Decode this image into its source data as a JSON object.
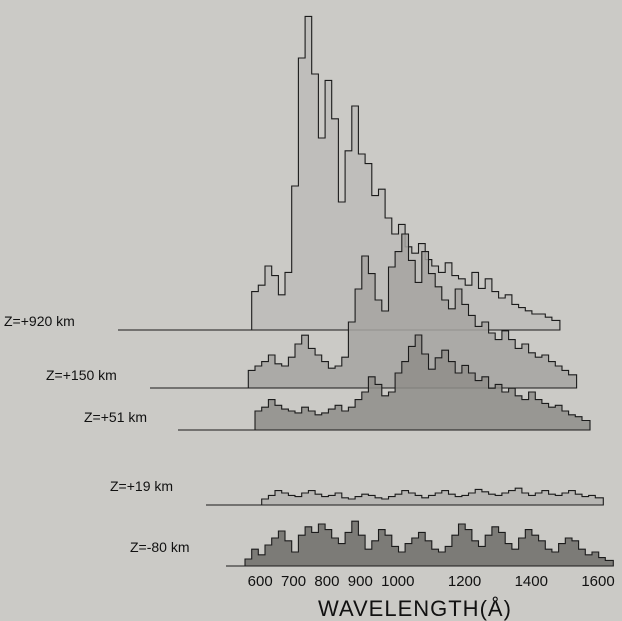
{
  "chart_data": {
    "type": "area",
    "title": "",
    "xlabel": "WAVELENGTH(Å)",
    "ylabel": "",
    "xlim": [
      550,
      1650
    ],
    "x_ticks": [
      "600",
      "700",
      "800",
      "900",
      "1000",
      "1200",
      "1400",
      "1600"
    ],
    "x_tick_values": [
      600,
      700,
      800,
      900,
      1000,
      1200,
      1400,
      1600
    ],
    "note_x_axis": "Tick labels are spaced as printed; 1100, 1300 and 1500 are not labeled.",
    "series": [
      {
        "name": "Z=+920 km",
        "color": "#bdbcb8",
        "x": [
          570,
          590,
          610,
          630,
          650,
          670,
          690,
          710,
          730,
          750,
          770,
          790,
          810,
          830,
          850,
          870,
          890,
          910,
          930,
          950,
          970,
          990,
          1010,
          1030,
          1050,
          1070,
          1090,
          1110,
          1130,
          1150,
          1170,
          1190,
          1210,
          1230,
          1250,
          1270,
          1290,
          1310,
          1330,
          1350,
          1370,
          1390,
          1410,
          1430,
          1450,
          1470
        ],
        "values": [
          0.12,
          0.14,
          0.2,
          0.17,
          0.11,
          0.18,
          0.45,
          0.85,
          0.98,
          0.8,
          0.6,
          0.78,
          0.66,
          0.4,
          0.56,
          0.7,
          0.55,
          0.52,
          0.42,
          0.44,
          0.35,
          0.3,
          0.33,
          0.26,
          0.24,
          0.27,
          0.22,
          0.2,
          0.18,
          0.21,
          0.17,
          0.16,
          0.14,
          0.18,
          0.13,
          0.16,
          0.12,
          0.1,
          0.11,
          0.08,
          0.07,
          0.06,
          0.05,
          0.05,
          0.04,
          0.03
        ]
      },
      {
        "name": "Z=+150 km",
        "color": "#a6a5a1",
        "x": [
          560,
          580,
          600,
          620,
          640,
          660,
          680,
          700,
          720,
          740,
          760,
          780,
          800,
          820,
          840,
          860,
          880,
          900,
          920,
          940,
          960,
          980,
          1000,
          1020,
          1040,
          1060,
          1080,
          1100,
          1120,
          1140,
          1160,
          1180,
          1200,
          1220,
          1240,
          1260,
          1280,
          1300,
          1320,
          1340,
          1360,
          1380,
          1400,
          1420,
          1440,
          1460,
          1480,
          1500,
          1520
        ],
        "values": [
          0.08,
          0.1,
          0.12,
          0.15,
          0.11,
          0.1,
          0.14,
          0.2,
          0.24,
          0.18,
          0.15,
          0.12,
          0.09,
          0.1,
          0.14,
          0.3,
          0.45,
          0.6,
          0.52,
          0.4,
          0.35,
          0.55,
          0.62,
          0.7,
          0.58,
          0.48,
          0.62,
          0.52,
          0.46,
          0.4,
          0.36,
          0.45,
          0.38,
          0.33,
          0.28,
          0.3,
          0.25,
          0.22,
          0.26,
          0.22,
          0.18,
          0.2,
          0.16,
          0.14,
          0.15,
          0.12,
          0.1,
          0.08,
          0.06
        ]
      },
      {
        "name": "Z=+51 km",
        "color": "#8f8e8a",
        "x": [
          580,
          600,
          620,
          640,
          660,
          680,
          700,
          720,
          740,
          760,
          780,
          800,
          820,
          840,
          860,
          880,
          900,
          920,
          940,
          960,
          980,
          1000,
          1020,
          1040,
          1060,
          1080,
          1100,
          1120,
          1140,
          1160,
          1180,
          1200,
          1220,
          1240,
          1260,
          1280,
          1300,
          1320,
          1340,
          1360,
          1380,
          1400,
          1420,
          1440,
          1460,
          1480,
          1500,
          1520,
          1540,
          1560
        ],
        "values": [
          0.1,
          0.12,
          0.16,
          0.13,
          0.11,
          0.1,
          0.09,
          0.12,
          0.1,
          0.08,
          0.09,
          0.11,
          0.13,
          0.1,
          0.12,
          0.16,
          0.2,
          0.28,
          0.24,
          0.18,
          0.2,
          0.3,
          0.36,
          0.44,
          0.5,
          0.4,
          0.32,
          0.38,
          0.42,
          0.36,
          0.3,
          0.34,
          0.3,
          0.26,
          0.28,
          0.22,
          0.24,
          0.2,
          0.22,
          0.18,
          0.16,
          0.2,
          0.16,
          0.14,
          0.12,
          0.13,
          0.1,
          0.08,
          0.07,
          0.05
        ]
      },
      {
        "name": "Z=+19 km",
        "color": "#b4b3af",
        "x": [
          600,
          620,
          640,
          660,
          680,
          700,
          720,
          740,
          760,
          780,
          800,
          820,
          840,
          860,
          880,
          900,
          920,
          940,
          960,
          980,
          1000,
          1020,
          1040,
          1060,
          1080,
          1100,
          1120,
          1140,
          1160,
          1180,
          1200,
          1220,
          1240,
          1260,
          1280,
          1300,
          1320,
          1340,
          1360,
          1380,
          1400,
          1420,
          1440,
          1460,
          1480,
          1500,
          1520,
          1540,
          1560,
          1580,
          1600
        ],
        "values": [
          0.05,
          0.08,
          0.12,
          0.1,
          0.08,
          0.07,
          0.1,
          0.12,
          0.09,
          0.07,
          0.08,
          0.1,
          0.06,
          0.05,
          0.07,
          0.09,
          0.08,
          0.06,
          0.05,
          0.07,
          0.09,
          0.12,
          0.1,
          0.08,
          0.06,
          0.08,
          0.1,
          0.12,
          0.09,
          0.07,
          0.08,
          0.1,
          0.13,
          0.11,
          0.09,
          0.08,
          0.1,
          0.12,
          0.14,
          0.1,
          0.08,
          0.1,
          0.12,
          0.09,
          0.08,
          0.1,
          0.12,
          0.09,
          0.07,
          0.08,
          0.06
        ]
      },
      {
        "name": "Z=-80 km",
        "color": "#6e6d69",
        "x": [
          550,
          570,
          590,
          610,
          630,
          650,
          670,
          690,
          710,
          730,
          750,
          770,
          790,
          810,
          830,
          850,
          870,
          890,
          910,
          930,
          950,
          970,
          990,
          1010,
          1030,
          1050,
          1070,
          1090,
          1110,
          1130,
          1150,
          1170,
          1190,
          1210,
          1230,
          1250,
          1270,
          1290,
          1310,
          1330,
          1350,
          1370,
          1390,
          1410,
          1430,
          1450,
          1470,
          1490,
          1510,
          1530,
          1550,
          1570,
          1590,
          1610,
          1630
        ],
        "values": [
          0.05,
          0.12,
          0.08,
          0.15,
          0.2,
          0.25,
          0.18,
          0.1,
          0.22,
          0.28,
          0.24,
          0.3,
          0.26,
          0.2,
          0.16,
          0.24,
          0.32,
          0.22,
          0.12,
          0.18,
          0.26,
          0.22,
          0.14,
          0.1,
          0.16,
          0.2,
          0.24,
          0.18,
          0.12,
          0.1,
          0.14,
          0.22,
          0.3,
          0.26,
          0.18,
          0.14,
          0.22,
          0.28,
          0.24,
          0.16,
          0.12,
          0.2,
          0.26,
          0.22,
          0.18,
          0.12,
          0.1,
          0.16,
          0.2,
          0.18,
          0.12,
          0.08,
          0.1,
          0.06,
          0.04
        ]
      }
    ],
    "grid": false,
    "legend": "none"
  }
}
